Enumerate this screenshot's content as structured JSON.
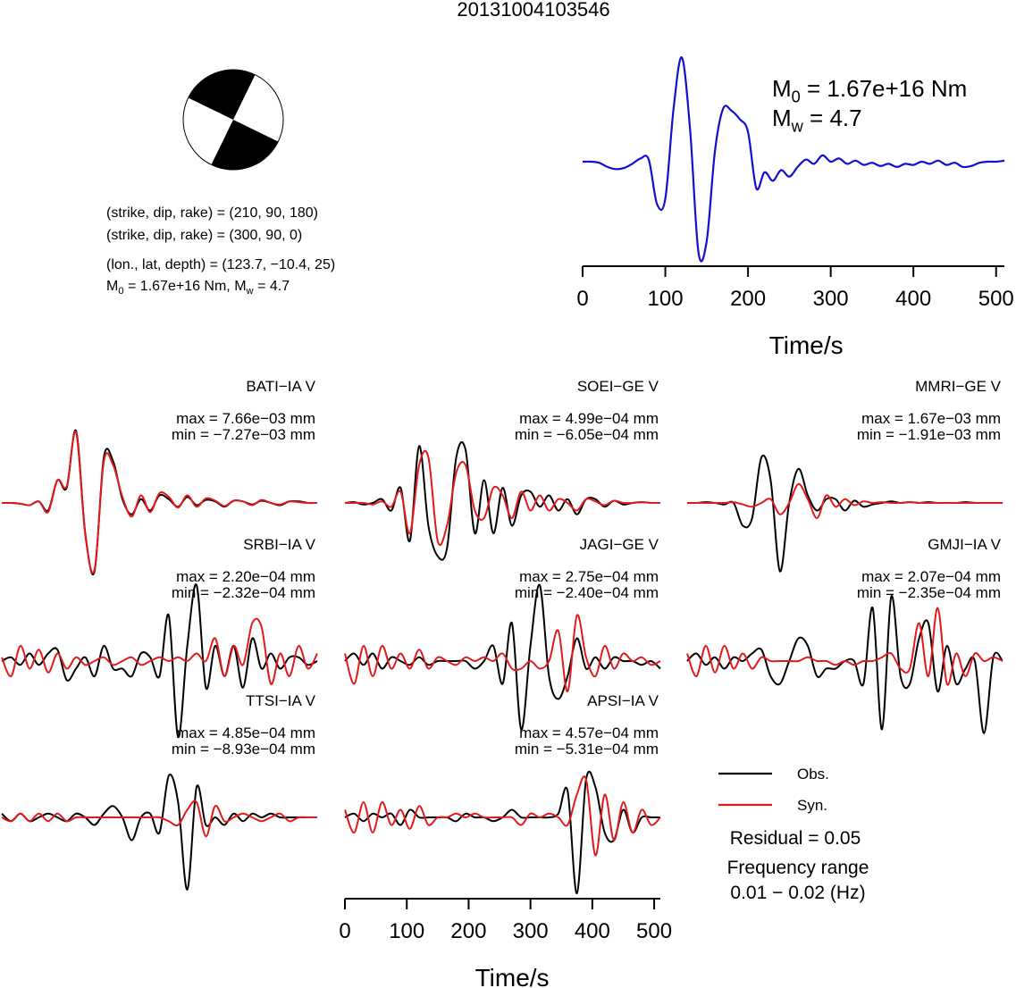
{
  "title": "20131004103546",
  "focal_mechanism": {
    "lines": [
      "(strike, dip, rake) = (210, 90, 180)",
      "(strike, dip, rake) = (300, 90, 0)",
      "(lon., lat, depth) = (123.7, −10.4, 25)"
    ],
    "moment_line": [
      "M",
      "0",
      " = 1.67e+16 Nm, M",
      "w",
      " = 4.7"
    ]
  },
  "chart_data": [
    {
      "type": "line",
      "color": "#1010d0",
      "xlabel": "Time/s",
      "xlim": [
        0,
        510
      ],
      "xticks": [
        0,
        100,
        200,
        300,
        400,
        500
      ],
      "annotations": [
        [
          "M",
          "0",
          " = 1.67e+16 Nm"
        ],
        [
          "M",
          "w",
          " = 4.7"
        ]
      ],
      "x": [
        0,
        10,
        20,
        30,
        40,
        50,
        60,
        70,
        80,
        90,
        100,
        110,
        120,
        130,
        140,
        150,
        160,
        170,
        180,
        190,
        200,
        210,
        220,
        230,
        240,
        250,
        260,
        270,
        280,
        290,
        300,
        310,
        320,
        330,
        340,
        350,
        360,
        370,
        380,
        390,
        400,
        410,
        420,
        430,
        440,
        450,
        460,
        470,
        480,
        490,
        500,
        510
      ],
      "values": [
        0,
        0,
        -0.01,
        -0.05,
        -0.07,
        -0.06,
        -0.02,
        0.03,
        0.02,
        -0.4,
        -0.35,
        0.5,
        0.98,
        0.3,
        -0.85,
        -0.75,
        0.1,
        0.5,
        0.48,
        0.4,
        0.28,
        -0.25,
        -0.1,
        -0.18,
        -0.08,
        -0.14,
        -0.05,
        0.02,
        -0.02,
        0.06,
        0,
        0.03,
        -0.02,
        0.01,
        -0.03,
        -0.01,
        -0.04,
        -0.02,
        -0.05,
        -0.02,
        -0.03,
        0,
        -0.02,
        0.01,
        -0.03,
        -0.01,
        -0.05,
        -0.04,
        -0.01,
        0,
        0,
        0.01
      ]
    },
    {
      "type": "waveforms",
      "xlabel": "Time/s",
      "xlim": [
        0,
        510
      ],
      "xticks": [
        0,
        100,
        200,
        300,
        400,
        500
      ],
      "series": [
        {
          "name": "Obs.",
          "color": "#000000"
        },
        {
          "name": "Syn.",
          "color": "#e31a1c"
        }
      ],
      "residual": "Residual = 0.05",
      "frequency": [
        "Frequency range",
        "0.01 − 0.02 (Hz)"
      ],
      "x": [
        0,
        15,
        30,
        45,
        60,
        75,
        90,
        105,
        120,
        135,
        150,
        165,
        180,
        195,
        210,
        225,
        240,
        255,
        270,
        285,
        300,
        315,
        330,
        345,
        360,
        375,
        390,
        405,
        420,
        435,
        450,
        465,
        480,
        495,
        510
      ],
      "stations": [
        {
          "name": "BATI−IA V",
          "max_label": "max = 7.66e−03 mm",
          "min_label": "min = −7.27e−03 mm",
          "obs": [
            0,
            0,
            -0.01,
            -0.03,
            0.02,
            -0.1,
            0.3,
            0.2,
            0.95,
            -0.4,
            -0.9,
            0.6,
            0.55,
            0.05,
            -0.15,
            0.05,
            -0.1,
            0.1,
            0.05,
            -0.05,
            0.08,
            -0.03,
            0.04,
            0.02,
            -0.05,
            0.03,
            0.02,
            -0.02,
            0.03,
            0,
            -0.03,
            0.02,
            0.02,
            0,
            0
          ],
          "syn": [
            0,
            0,
            -0.01,
            -0.03,
            0.02,
            -0.12,
            0.3,
            0.22,
            0.93,
            -0.42,
            -0.88,
            0.55,
            0.5,
            0.08,
            -0.18,
            0.1,
            -0.12,
            0.13,
            0.08,
            -0.06,
            0.1,
            -0.05,
            0.06,
            0.03,
            -0.04,
            0.03,
            0.02,
            -0.03,
            0.04,
            0,
            -0.02,
            0.02,
            0.01,
            0,
            0
          ]
        },
        {
          "name": "SOEI−GE V",
          "max_label": "max = 4.99e−04 mm",
          "min_label": "min = −6.05e−04 mm",
          "obs": [
            0,
            0.01,
            -0.02,
            0,
            0.05,
            -0.1,
            0.2,
            -0.5,
            0.75,
            -0.3,
            -0.7,
            -0.6,
            0.6,
            0.7,
            -0.4,
            0.3,
            -0.4,
            0.2,
            -0.3,
            0.1,
            0.15,
            -0.05,
            0.1,
            -0.1,
            0.05,
            -0.15,
            0.05,
            0.05,
            -0.05,
            0.03,
            -0.02,
            0,
            0.01,
            0,
            0
          ],
          "syn": [
            0,
            0,
            0,
            -0.02,
            0.02,
            -0.05,
            0.15,
            -0.4,
            0.5,
            0.6,
            -0.5,
            -0.3,
            0.4,
            0.5,
            -0.1,
            -0.2,
            0.2,
            0.1,
            -0.2,
            0.15,
            -0.1,
            0.1,
            -0.1,
            0.05,
            0,
            -0.1,
            0.05,
            0.02,
            -0.03,
            0.03,
            0,
            0,
            0.01,
            0,
            0
          ]
        },
        {
          "name": "MMRI−GE V",
          "max_label": "max = 1.67e−03 mm",
          "min_label": "min = −1.91e−03 mm",
          "obs": [
            0,
            0,
            0.01,
            0,
            -0.02,
            0,
            -0.3,
            -0.2,
            0.6,
            0.3,
            -0.9,
            0,
            0.45,
            0.1,
            -0.1,
            0.05,
            0.05,
            -0.1,
            0.03,
            -0.05,
            -0.02,
            0,
            0.02,
            0,
            0.01,
            0,
            0.01,
            0,
            0,
            0,
            0.01,
            0,
            0,
            0,
            0
          ],
          "syn": [
            0,
            0,
            0,
            0,
            0,
            0.01,
            -0.02,
            -0.05,
            0,
            0.05,
            -0.15,
            0,
            0.25,
            0.05,
            -0.2,
            0.1,
            -0.05,
            0.05,
            -0.03,
            0.02,
            0,
            0.01,
            0,
            0,
            0.01,
            0,
            0,
            0,
            0,
            0,
            0,
            0,
            0,
            0,
            0
          ]
        },
        {
          "name": "SRBI−IA V",
          "max_label": "max = 2.20e−04 mm",
          "min_label": "min = −2.32e−04 mm",
          "obs": [
            0,
            0.05,
            -0.05,
            0.1,
            -0.05,
            0.1,
            0.15,
            -0.25,
            -0.1,
            0.05,
            -0.2,
            0.2,
            -0.1,
            -0.1,
            -0.2,
            0.1,
            0.05,
            -0.2,
            0.6,
            -1,
            0.2,
            1,
            -0.35,
            0.2,
            -0.2,
            0.2,
            -0.35,
            0.3,
            -0.1,
            0.1,
            -0.1,
            0.05,
            0.05,
            -0.05,
            0
          ],
          "syn": [
            0.05,
            -0.2,
            0.2,
            -0.1,
            0.15,
            -0.15,
            0.1,
            -0.1,
            0.05,
            -0.05,
            0,
            0.05,
            -0.05,
            0,
            0.05,
            -0.05,
            0,
            0.05,
            0,
            0.05,
            0,
            0.1,
            0,
            0.3,
            -0.2,
            0.2,
            -0.05,
            0.5,
            0.45,
            -0.3,
            0.1,
            -0.2,
            0.2,
            -0.1,
            0.1
          ]
        },
        {
          "name": "JAGI−GE V",
          "max_label": "max = 2.75e−04 mm",
          "min_label": "min = −2.40e−04 mm",
          "obs": [
            0,
            0.1,
            -0.05,
            0.1,
            -0.1,
            0.05,
            0,
            -0.05,
            0.05,
            -0.05,
            0,
            0,
            0,
            0,
            -0.1,
            0,
            0.2,
            -0.3,
            0.5,
            -0.9,
            0.2,
            1,
            -0.2,
            -0.5,
            -0.2,
            0.3,
            -0.1,
            0.05,
            -0.1,
            0.05,
            0,
            0,
            -0.05,
            0,
            -0.1
          ],
          "syn": [
            0.1,
            -0.3,
            0.2,
            -0.2,
            0.2,
            -0.1,
            0.1,
            -0.1,
            0.15,
            -0.1,
            0.05,
            0,
            -0.05,
            0.05,
            0,
            0.05,
            0,
            0.1,
            -0.1,
            -0.1,
            0,
            -0.1,
            0,
            0.4,
            -0.4,
            0.6,
            0.05,
            -0.2,
            0.2,
            -0.1,
            0.1,
            0,
            0.05,
            -0.05,
            0
          ]
        },
        {
          "name": "GMJI−IA V",
          "max_label": "max = 2.07e−04 mm",
          "min_label": "min = −2.35e−04 mm",
          "obs": [
            0,
            0.1,
            -0.05,
            0.05,
            -0.1,
            0.05,
            0,
            0.1,
            0.15,
            -0.2,
            -0.3,
            0,
            0.3,
            0.2,
            -0.2,
            -0.1,
            -0.1,
            0,
            0,
            -0.3,
            0.7,
            -0.9,
            0.85,
            -0.2,
            -0.3,
            0.3,
            0.5,
            -0.4,
            0.2,
            -0.3,
            -0.1,
            0,
            -0.95,
            0.05,
            0
          ],
          "syn": [
            0.1,
            -0.2,
            0.2,
            -0.15,
            0.2,
            -0.1,
            0.1,
            -0.1,
            0.05,
            0,
            0,
            0,
            0,
            0.05,
            0,
            0,
            -0.05,
            0,
            -0.05,
            0,
            0,
            0.05,
            0.1,
            -0.1,
            -0.1,
            0.5,
            -0.2,
            0.7,
            -0.3,
            0.1,
            -0.2,
            0.1,
            0,
            0.05,
            0
          ]
        },
        {
          "name": "TTSI−IA V",
          "max_label": "max = 4.85e−04 mm",
          "min_label": "min = −8.93e−04 mm",
          "obs": [
            0.05,
            -0.05,
            0.05,
            -0.05,
            0,
            0.05,
            0,
            -0.05,
            0.05,
            0,
            -0.1,
            0.05,
            0.15,
            0,
            -0.3,
            0,
            0.05,
            -0.2,
            0.55,
            0.2,
            -0.95,
            0.4,
            -0.1,
            0,
            -0.1,
            0.05,
            -0.05,
            0.05,
            0,
            0.05,
            0,
            0,
            0,
            0,
            0
          ],
          "syn": [
            0,
            -0.05,
            0.05,
            -0.05,
            0.05,
            -0.05,
            0.05,
            -0.05,
            0,
            0,
            0,
            0,
            0,
            0,
            0,
            0,
            0,
            0,
            -0.05,
            -0.1,
            0.1,
            0.2,
            -0.25,
            0.15,
            -0.05,
            0,
            0.05,
            0,
            -0.05,
            0,
            0.05,
            -0.05,
            0,
            0,
            0
          ]
        },
        {
          "name": "APSI−IA V",
          "max_label": "max = 4.57e−04 mm",
          "min_label": "min = −5.31e−04 mm",
          "obs": [
            0,
            0.05,
            -0.05,
            0.05,
            0,
            0.05,
            -0.1,
            0.1,
            0,
            0,
            0,
            0,
            -0.05,
            0.05,
            0,
            0,
            -0.05,
            0,
            0.1,
            0,
            0,
            0,
            0,
            0.05,
            0.35,
            -1,
            0.5,
            0.4,
            -0.2,
            -0.3,
            0.1,
            -0.2,
            0,
            0,
            0
          ],
          "syn": [
            0.1,
            -0.2,
            0.2,
            -0.2,
            0.2,
            -0.1,
            0.1,
            -0.15,
            0.15,
            -0.1,
            0,
            0,
            0.05,
            0,
            0.05,
            0,
            0,
            0,
            0,
            -0.1,
            0.05,
            0,
            0.05,
            0,
            -0.1,
            0.3,
            0.5,
            -0.5,
            0.3,
            -0.3,
            0.2,
            -0.2,
            0.1,
            -0.1,
            0
          ]
        }
      ]
    }
  ]
}
